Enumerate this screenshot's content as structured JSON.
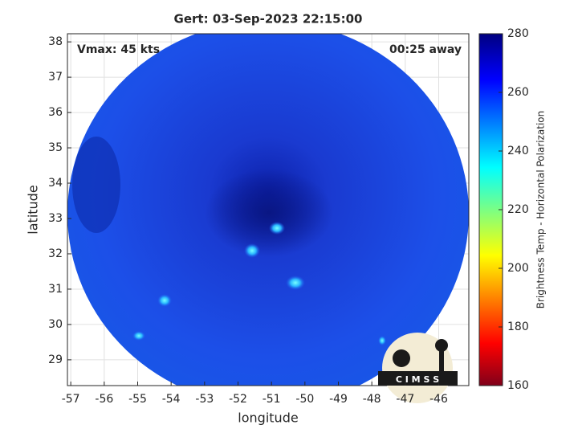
{
  "chart_data": {
    "type": "image",
    "title": "Gert: 03-Sep-2023 22:15:00",
    "xlabel": "longitude",
    "ylabel": "latitude",
    "colorbar_label": "Brightness Temp - Horizontal Polarization",
    "annotations": [
      "Vmax: 45 kts",
      "00:25 away"
    ],
    "logo": "C I M S S",
    "xlim": [
      -57.1,
      -45.1
    ],
    "xticks": [
      -57,
      -56,
      -55,
      -54,
      -53,
      -52,
      -51,
      -50,
      -49,
      -48,
      -47,
      -46
    ],
    "ylim": [
      28.27,
      38.23
    ],
    "yticks": [
      29,
      30,
      31,
      32,
      33,
      34,
      35,
      36,
      37,
      38
    ],
    "clim": [
      160,
      280
    ],
    "cticks": [
      160,
      180,
      200,
      220,
      240,
      260,
      280
    ],
    "colormap": "jet",
    "grid": true
  }
}
